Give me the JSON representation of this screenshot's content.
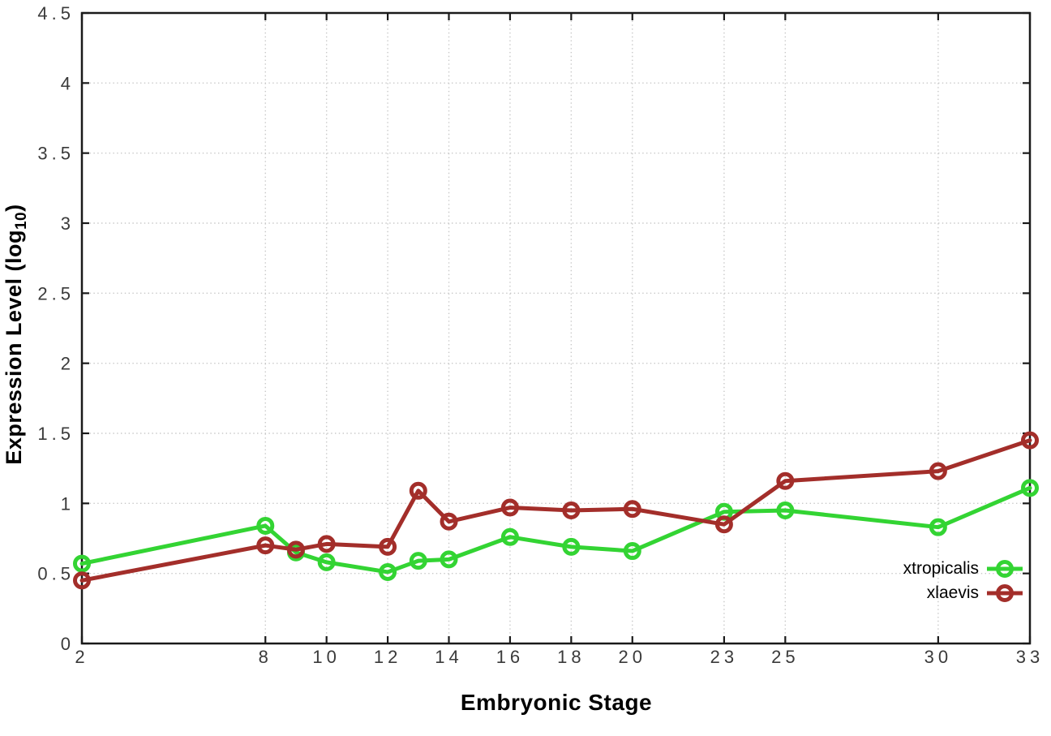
{
  "chart_data": {
    "type": "line",
    "title": "",
    "xlabel": "Embryonic Stage",
    "ylabel": "Expression Level (log10)",
    "ylabel_rich": {
      "pre": "Expression Level (log",
      "sub": "10",
      "post": ")"
    },
    "xlim": [
      2,
      33
    ],
    "ylim": [
      0,
      4.5
    ],
    "xticks": [
      2,
      8,
      10,
      12,
      14,
      16,
      18,
      20,
      23,
      25,
      30,
      33
    ],
    "yticks": [
      0,
      0.5,
      1,
      1.5,
      2,
      2.5,
      3,
      3.5,
      4,
      4.5
    ],
    "grid": true,
    "marker": "open-circle",
    "legend_position": "inside-bottom-right",
    "x": [
      2,
      8,
      9,
      10,
      12,
      13,
      14,
      16,
      18,
      20,
      23,
      25,
      30,
      33
    ],
    "series": [
      {
        "name": "xtropicalis",
        "color": "#33d433",
        "values": [
          0.57,
          0.84,
          0.65,
          0.58,
          0.51,
          0.59,
          0.6,
          0.76,
          0.69,
          0.66,
          0.94,
          0.95,
          0.83,
          1.11
        ]
      },
      {
        "name": "xlaevis",
        "color": "#a32e2a",
        "values": [
          0.45,
          0.7,
          0.67,
          0.71,
          0.69,
          1.09,
          0.87,
          0.97,
          0.95,
          0.96,
          0.85,
          1.16,
          1.23,
          1.45
        ]
      }
    ],
    "colors": {
      "grid": "#c8c8c8",
      "axis": "#1a1a1a",
      "tick_label": "#3a3a3a"
    }
  }
}
